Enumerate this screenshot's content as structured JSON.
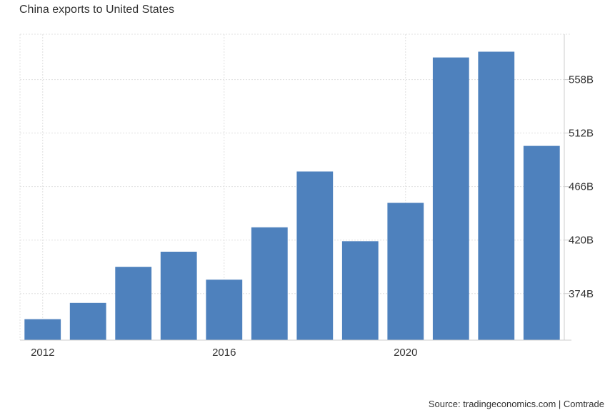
{
  "chart_data": {
    "type": "bar",
    "title": "China exports to United States",
    "categories": [
      "2012",
      "2013",
      "2014",
      "2015",
      "2016",
      "2017",
      "2018",
      "2019",
      "2020",
      "2021",
      "2022",
      "2023"
    ],
    "values": [
      352,
      366,
      397,
      410,
      386,
      431,
      479,
      419,
      452,
      577,
      582,
      501
    ],
    "x_tick_labels": [
      "2012",
      "2016",
      "2020"
    ],
    "y_ticks": [
      374,
      420,
      466,
      512,
      558
    ],
    "y_tick_labels": [
      "374B",
      "420B",
      "466B",
      "512B",
      "558B"
    ],
    "ylim": [
      334,
      597
    ],
    "y_axis_position": "right",
    "grid": true,
    "bar_color": "#4e81bd",
    "grid_color": "#e0e0e0"
  },
  "source_text": "Source: tradingeconomics.com | Comtrade"
}
